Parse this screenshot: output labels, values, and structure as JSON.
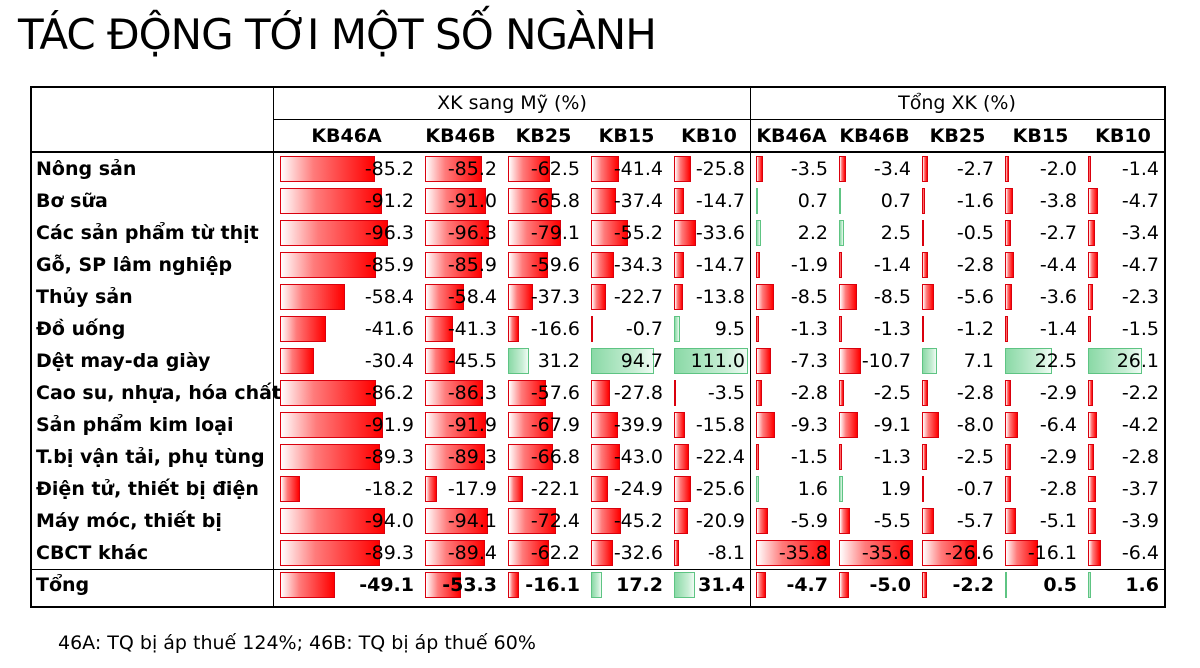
{
  "title": "TÁC ĐỘNG TỚI MỘT SỐ NGÀNH",
  "footnote": "46A: TQ bị áp thuế 124%; 46B: TQ bị áp thuế 60%",
  "colors": {
    "negative": "#ff0000",
    "positive": "#8ad9a6"
  },
  "groups": [
    {
      "label": "XK sang Mỹ (%)",
      "scale_max": 111
    },
    {
      "label": "Tổng XK (%)",
      "scale_max": 35.8
    }
  ],
  "columns": [
    "KB46A",
    "KB46B",
    "KB25",
    "KB15",
    "KB10",
    "KB46A",
    "KB46B",
    "KB25",
    "KB15",
    "KB10"
  ],
  "rows": [
    {
      "label": "Nông sản",
      "bold": false,
      "values": [
        "-85.2",
        "-85.2",
        "-62.5",
        "-41.4",
        "-25.8",
        "-3.5",
        "-3.4",
        "-2.7",
        "-2.0",
        "-1.4"
      ]
    },
    {
      "label": "Bơ sữa",
      "bold": false,
      "values": [
        "-91.2",
        "-91.0",
        "-65.8",
        "-37.4",
        "-14.7",
        "0.7",
        "0.7",
        "-1.6",
        "-3.8",
        "-4.7"
      ]
    },
    {
      "label": "Các sản phẩm từ thịt",
      "bold": false,
      "values": [
        "-96.3",
        "-96.3",
        "-79.1",
        "-55.2",
        "-33.6",
        "2.2",
        "2.5",
        "-0.5",
        "-2.7",
        "-3.4"
      ]
    },
    {
      "label": "Gỗ, SP lâm nghiệp",
      "bold": false,
      "values": [
        "-85.9",
        "-85.9",
        "-59.6",
        "-34.3",
        "-14.7",
        "-1.9",
        "-1.4",
        "-2.8",
        "-4.4",
        "-4.7"
      ]
    },
    {
      "label": "Thủy sản",
      "bold": false,
      "values": [
        "-58.4",
        "-58.4",
        "-37.3",
        "-22.7",
        "-13.8",
        "-8.5",
        "-8.5",
        "-5.6",
        "-3.6",
        "-2.3"
      ]
    },
    {
      "label": "Đồ uống",
      "bold": false,
      "values": [
        "-41.6",
        "-41.3",
        "-16.6",
        "-0.7",
        "9.5",
        "-1.3",
        "-1.3",
        "-1.2",
        "-1.4",
        "-1.5"
      ]
    },
    {
      "label": "Dệt may-da giày",
      "bold": false,
      "values": [
        "-30.4",
        "-45.5",
        "31.2",
        "94.7",
        "111.0",
        "-7.3",
        "-10.7",
        "7.1",
        "22.5",
        "26.1"
      ]
    },
    {
      "label": "Cao su, nhựa, hóa chất",
      "bold": false,
      "values": [
        "-86.2",
        "-86.3",
        "-57.6",
        "-27.8",
        "-3.5",
        "-2.8",
        "-2.5",
        "-2.8",
        "-2.9",
        "-2.2"
      ]
    },
    {
      "label": "Sản phẩm kim loại",
      "bold": false,
      "values": [
        "-91.9",
        "-91.9",
        "-67.9",
        "-39.9",
        "-15.8",
        "-9.3",
        "-9.1",
        "-8.0",
        "-6.4",
        "-4.2"
      ]
    },
    {
      "label": "T.bị vận tải, phụ tùng",
      "bold": false,
      "values": [
        "-89.3",
        "-89.3",
        "-66.8",
        "-43.0",
        "-22.4",
        "-1.5",
        "-1.3",
        "-2.5",
        "-2.9",
        "-2.8"
      ]
    },
    {
      "label": "Điện tử, thiết bị điện",
      "bold": false,
      "values": [
        "-18.2",
        "-17.9",
        "-22.1",
        "-24.9",
        "-25.6",
        "1.6",
        "1.9",
        "-0.7",
        "-2.8",
        "-3.7"
      ]
    },
    {
      "label": "Máy móc, thiết bị",
      "bold": false,
      "values": [
        "-94.0",
        "-94.1",
        "-72.4",
        "-45.2",
        "-20.9",
        "-5.9",
        "-5.5",
        "-5.7",
        "-5.1",
        "-3.9"
      ]
    },
    {
      "label": "CBCT khác",
      "bold": false,
      "values": [
        "-89.3",
        "-89.4",
        "-62.2",
        "-32.6",
        "-8.1",
        "-35.8",
        "-35.6",
        "-26.6",
        "-16.1",
        "-6.4"
      ]
    },
    {
      "label": "Tổng",
      "bold": true,
      "values": [
        "-49.1",
        "-53.3",
        "-16.1",
        "17.2",
        "31.4",
        "-4.7",
        "-5.0",
        "-2.2",
        "0.5",
        "1.6"
      ]
    }
  ]
}
